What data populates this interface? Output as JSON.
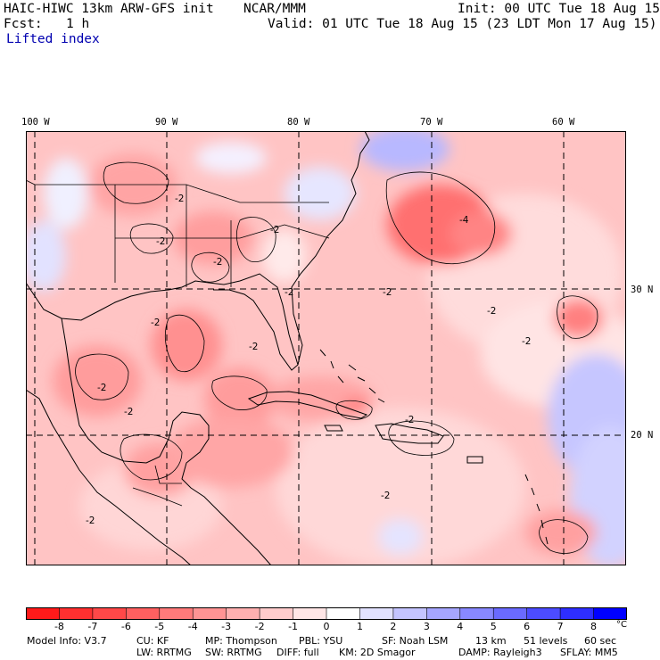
{
  "header": {
    "model_title": "HAIC-HIWC 13km ARW-GFS init",
    "center": "NCAR/MMM",
    "init": "Init: 00 UTC Tue 18 Aug 15",
    "fcst_label": "Fcst:",
    "fcst_value": "1 h",
    "valid": "Valid: 01 UTC Tue 18 Aug 15 (23 LDT Mon 17 Aug 15)",
    "field_name": "Lifted index"
  },
  "map": {
    "lon_labels": [
      "100 W",
      "90 W",
      "80 W",
      "70 W",
      "60 W"
    ],
    "lat_labels": [
      "30 N",
      "20 N"
    ],
    "contour_labels": [
      "-2",
      "-2",
      "-2",
      "-2",
      "-2",
      "-4",
      "-2",
      "-2",
      "-2",
      "-2",
      "-2",
      "-2",
      "-2",
      "-2",
      "-2",
      "-2"
    ],
    "colors": {
      "gridline": "#000000",
      "coastline": "#000000"
    }
  },
  "colorbar": {
    "unit": "°C",
    "ticks": [
      "-8",
      "-7",
      "-6",
      "-5",
      "-4",
      "-3",
      "-2",
      "-1",
      "0",
      "1",
      "2",
      "3",
      "4",
      "5",
      "6",
      "7",
      "8"
    ],
    "colors": [
      "#ff1a1a",
      "#ff3030",
      "#ff4848",
      "#ff6060",
      "#ff7a7a",
      "#ff9494",
      "#ffb0b0",
      "#ffcccc",
      "#ffe6e6",
      "#ffffff",
      "#e2e2ff",
      "#c4c4ff",
      "#a6a6ff",
      "#8888ff",
      "#6a6aff",
      "#4c4cff",
      "#2e2eff",
      "#0000ff"
    ]
  },
  "footer": {
    "line1": [
      "Model Info: V3.7",
      "CU: KF",
      "MP: Thompson",
      "PBL: YSU",
      "SF: Noah LSM",
      "13 km",
      "51 levels",
      "60 sec"
    ],
    "line2": [
      "LW: RRTMG",
      "SW: RRTMG",
      "DIFF: full",
      "KM: 2D Smagor",
      "DAMP: Rayleigh3",
      "SFLAY: MM5"
    ]
  }
}
